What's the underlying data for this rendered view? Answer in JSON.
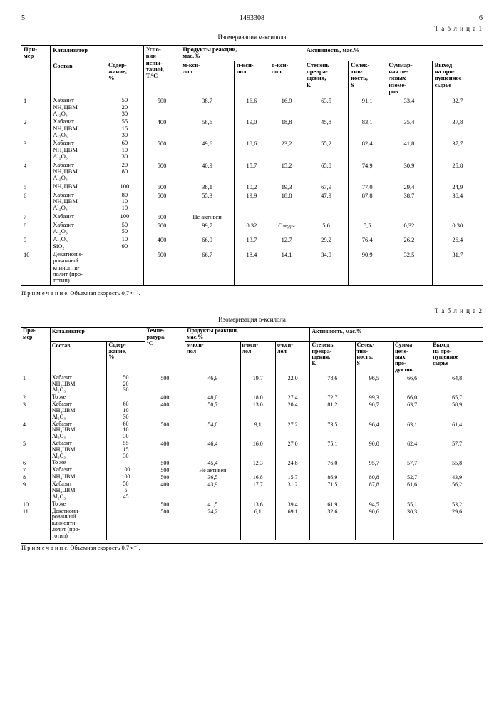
{
  "header": {
    "page_left": "5",
    "doc_number": "1493308",
    "page_right": "6"
  },
  "table1": {
    "label": "Т а б л и ц а 1",
    "title": "Изомеризация м-ксилола",
    "head": {
      "primer": "При-\nмер",
      "catalyst": "Катализатор",
      "composition": "Состав",
      "content": "Содер-\nжание,\n%",
      "conditions": "Усло-\nвия\nиспы-\nтаний,\nТ,°C",
      "products": "Продукты реакции,\nмас.%",
      "m_xyl": "м-кси-\nлол",
      "p_xyl": "п-кси-\nлол",
      "o_xyl": "о-кси-\nлол",
      "activity": "Активность, мас.%",
      "degree": "Степень\nпревра-\nщения,\nК",
      "select": "Селек-\nтив-\nность,\nS",
      "sum": "Суммар-\nная це-\nлевых\nизоме-\nров",
      "yield": "Выход\nна про-\nпущенное\nсырье"
    },
    "rows": [
      {
        "n": "1",
        "comp": "Хабазит\nNH₄ЦВМ\nАl₂O₃",
        "cont": "50\n20\n30",
        "t": "500",
        "m": "38,7",
        "p": "16,6",
        "o": "16,9",
        "k": "63,5",
        "s": "91,1",
        "sum": "33,4",
        "y": "32,7"
      },
      {
        "n": "2",
        "comp": "Хабазит\nNH₄ЦВМ\nАl₂O₃",
        "cont": "55\n15\n30",
        "t": "400",
        "m": "58,6",
        "p": "19,0",
        "o": "18,8",
        "k": "45,8",
        "s": "83,1",
        "sum": "35,4",
        "y": "37,8"
      },
      {
        "n": "3",
        "comp": "Хабазит\nNH₄ЦВМ\nАl₂O₃",
        "cont": "60\n10\n30",
        "t": "500",
        "m": "49,6",
        "p": "18,6",
        "o": "23,2",
        "k": "55,2",
        "s": "82,4",
        "sum": "41,8",
        "y": "37,7"
      },
      {
        "n": "4",
        "comp": "Хабазит\nNH₄ЦВМ\nАl₂O₃",
        "cont": "20\n80",
        "t": "500",
        "m": "40,9",
        "p": "15,7",
        "o": "15,2",
        "k": "65,8",
        "s": "74,9",
        "sum": "30,9",
        "y": "25,8"
      },
      {
        "n": "5",
        "comp": "NH₄ЦВМ",
        "cont": "100",
        "t": "500",
        "m": "38,1",
        "p": "10,2",
        "o": "19,3",
        "k": "67,9",
        "s": "77,0",
        "sum": "29,4",
        "y": "24,9"
      },
      {
        "n": "6",
        "comp": "Хабазит\nNH₄ЦВМ\nАl₂O₃",
        "cont": "80\n10\n10",
        "t": "500",
        "m": "55,3",
        "p": "19,9",
        "o": "18,8",
        "k": "47,9",
        "s": "87,8",
        "sum": "38,7",
        "y": "36,4"
      },
      {
        "n": "7",
        "comp": "Хабазит",
        "cont": "100",
        "t": "500",
        "m": "Не активен",
        "p": "",
        "o": "",
        "k": "",
        "s": "",
        "sum": "",
        "y": ""
      },
      {
        "n": "8",
        "comp": "Хабазит\nАl₂O₃",
        "cont": "50\n50",
        "t": "500",
        "m": "99,7",
        "p": "0,32",
        "o": "Следы",
        "k": "5,6",
        "s": "5,5",
        "sum": "0,32",
        "y": "0,30"
      },
      {
        "n": "9",
        "comp": "Al₂O₃\nSiO₂",
        "cont": "10\n90",
        "t": "400",
        "m": "66,9",
        "p": "13,7",
        "o": "12,7",
        "k": "29,2",
        "s": "76,4",
        "sum": "26,2",
        "y": "26,4"
      },
      {
        "n": "10",
        "comp": "Декатиони-\nрованный\nклинопти-\nлолит (про-\nтотип)",
        "cont": "",
        "t": "500",
        "m": "66,7",
        "p": "18,4",
        "o": "14,1",
        "k": "34,9",
        "s": "90,9",
        "sum": "32,5",
        "y": "31,7"
      }
    ],
    "note": "П р и м е ч а н и е. Объемная скорость 0,7 ч⁻¹."
  },
  "table2": {
    "label": "Т а б л и ц а 2",
    "title": "Изомеризация о-ксилола",
    "head": {
      "primer": "При-\nмер",
      "catalyst": "Катализатор",
      "composition": "Состав",
      "content": "Содер-\nжание,\n%",
      "temp": "Темпе-\nратура,\n°C",
      "products": "Продукты реакции,\nмас.%",
      "m_xyl": "м-кси-\nлол",
      "p_xyl": "п-кси-\nлол",
      "o_xyl": "о-кси-\nлол",
      "activity": "Активность, мас.%",
      "degree": "Степень\nпревра-\nщения,\nК",
      "select": "Селек-\nтив-\nность,\nS",
      "sum": "Сумма\nцеле-\nвых\nпро-\nдуктов",
      "yield": "Выход\nна про-\nпущенное\nсырье"
    },
    "rows": [
      {
        "n": "1",
        "comp": "Хабазит\nNH₄ЦВМ\nАl₂O₃",
        "cont": "50\n20\n30",
        "t": "500",
        "m": "46,9",
        "p": "19,7",
        "o": "22,0",
        "k": "78,6",
        "s": "96,5",
        "sum": "66,6",
        "y": "64,8"
      },
      {
        "n": "2",
        "comp": "То же",
        "cont": "",
        "t": "400",
        "m": "48,0",
        "p": "18,0",
        "o": "27,4",
        "k": "72,7",
        "s": "99,3",
        "sum": "66,0",
        "y": "65,7"
      },
      {
        "n": "3",
        "comp": "Хабазит\nNH₄ЦВМ\nАl₂O₃",
        "cont": "60\n10\n30",
        "t": "400",
        "m": "50,7",
        "p": "13,0",
        "o": "20,4",
        "k": "81,2",
        "s": "90,7",
        "sum": "63,7",
        "y": "58,9"
      },
      {
        "n": "4",
        "comp": "Хабазит\nNH₄ЦВМ\nАl₂O₃",
        "cont": "60\n10\n30",
        "t": "500",
        "m": "54,0",
        "p": "9,1",
        "o": "27,2",
        "k": "73,5",
        "s": "96,4",
        "sum": "63,1",
        "y": "61,4"
      },
      {
        "n": "5",
        "comp": "Хабазит\nNH₄ЦВМ\nАl₂O₃",
        "cont": "55\n15\n30",
        "t": "400",
        "m": "46,4",
        "p": "16,0",
        "o": "27,0",
        "k": "75,1",
        "s": "90,0",
        "sum": "62,4",
        "y": "57,7"
      },
      {
        "n": "6",
        "comp": "То же",
        "cont": "",
        "t": "500",
        "m": "45,4",
        "p": "12,3",
        "o": "24,8",
        "k": "76,0",
        "s": "95,7",
        "sum": "57,7",
        "y": "55,8"
      },
      {
        "n": "7",
        "comp": "Хабазит",
        "cont": "100",
        "t": "500",
        "m": "Не активен",
        "p": "",
        "o": "",
        "k": "",
        "s": "",
        "sum": "",
        "y": ""
      },
      {
        "n": "8",
        "comp": "NH₄ЦВМ",
        "cont": "100",
        "t": "500",
        "m": "36,5",
        "p": "16,8",
        "o": "15,7",
        "k": "86,9",
        "s": "80,8",
        "sum": "52,7",
        "y": "43,9"
      },
      {
        "n": "9",
        "comp": "Хабазит\nNH₄ЦВМ\nАl₂O₃",
        "cont": "50\n5\n45",
        "t": "400",
        "m": "43,9",
        "p": "17,7",
        "o": "31,2",
        "k": "71,5",
        "s": "87,8",
        "sum": "61,6",
        "y": "56,2"
      },
      {
        "n": "10",
        "comp": "То же",
        "cont": "",
        "t": "500",
        "m": "41,5",
        "p": "13,6",
        "o": "39,4",
        "k": "61,9",
        "s": "94,5",
        "sum": "55,1",
        "y": "53,2"
      },
      {
        "n": "11",
        "comp": "Декатиони-\nрованный\nклинопти-\nлолит (про-\nтотип)",
        "cont": "",
        "t": "500",
        "m": "24,2",
        "p": "6,1",
        "o": "69,1",
        "k": "32,6",
        "s": "90,6",
        "sum": "30,3",
        "y": "29,6"
      }
    ],
    "note": "П р и м е ч а н и е. Объемная скорость 0,7 ч⁻¹."
  }
}
